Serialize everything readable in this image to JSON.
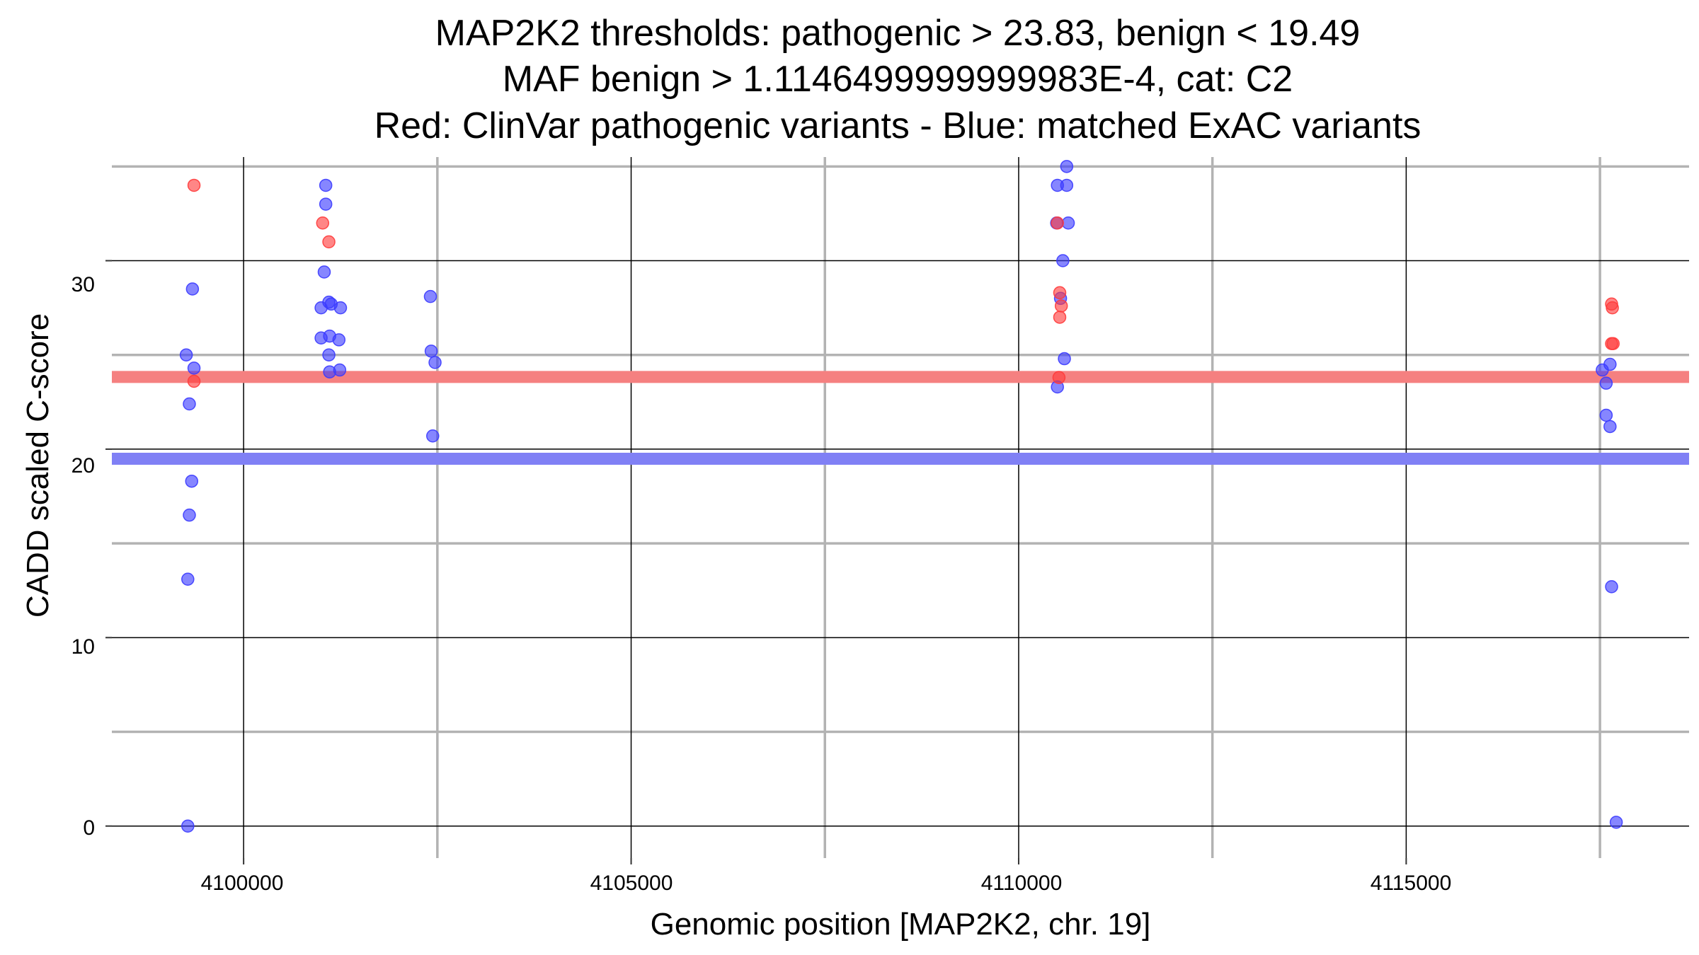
{
  "chart_data": {
    "type": "scatter",
    "title_lines": [
      "MAP2K2 thresholds: pathogenic > 23.83, benign < 19.49",
      "MAF benign > 1.1146499999999983E-4, cat: C2",
      "Red: ClinVar pathogenic variants - Blue: matched ExAC variants"
    ],
    "xlabel": "Genomic position [MAP2K2, chr. 19]",
    "ylabel": "CADD scaled C-score",
    "xlim": [
      4098300,
      4118650
    ],
    "ylim": [
      -1.7,
      35.5
    ],
    "x_major_ticks": [
      4100000,
      4105000,
      4110000,
      4115000
    ],
    "x_minor_ticks": [
      4102500,
      4107500,
      4112500,
      4117500
    ],
    "y_major_ticks": [
      0,
      10,
      20,
      30
    ],
    "y_minor_ticks": [
      5,
      15,
      25,
      35
    ],
    "x_tick_labels": [
      "4100000",
      "4105000",
      "4110000",
      "4115000"
    ],
    "y_tick_labels": [
      "0",
      "10",
      "20",
      "30"
    ],
    "colors": {
      "pathogenic": "#ff3b3b",
      "benign": "#3b3bff",
      "pathogenic_threshold_line": "#f58080",
      "benign_threshold_line": "#8080f5",
      "major_grid": "#000000",
      "minor_grid": "#b3b3b3"
    },
    "thresholds": {
      "pathogenic": 23.83,
      "benign": 19.49
    },
    "series": [
      {
        "name": "ClinVar pathogenic variants",
        "color_key": "pathogenic",
        "points": [
          [
            4099360,
            34.0
          ],
          [
            4099360,
            23.6
          ],
          [
            4101020,
            32.0
          ],
          [
            4101100,
            31.0
          ],
          [
            4110500,
            32.0
          ],
          [
            4110530,
            28.3
          ],
          [
            4110550,
            27.6
          ],
          [
            4110530,
            27.0
          ],
          [
            4110520,
            23.8
          ],
          [
            4117650,
            27.7
          ],
          [
            4117660,
            27.5
          ],
          [
            4117650,
            25.6
          ],
          [
            4117670,
            25.6
          ]
        ]
      },
      {
        "name": "matched ExAC variants",
        "color_key": "benign",
        "points": [
          [
            4099260,
            25.0
          ],
          [
            4099360,
            24.3
          ],
          [
            4099300,
            22.4
          ],
          [
            4099330,
            18.3
          ],
          [
            4099300,
            16.5
          ],
          [
            4099280,
            13.1
          ],
          [
            4099280,
            0.0
          ],
          [
            4099340,
            28.5
          ],
          [
            4101060,
            34.0
          ],
          [
            4101060,
            33.0
          ],
          [
            4101040,
            29.4
          ],
          [
            4101000,
            27.5
          ],
          [
            4101100,
            27.8
          ],
          [
            4101130,
            27.7
          ],
          [
            4101250,
            27.5
          ],
          [
            4101000,
            25.9
          ],
          [
            4101110,
            26.0
          ],
          [
            4101230,
            25.8
          ],
          [
            4101100,
            25.0
          ],
          [
            4101110,
            24.1
          ],
          [
            4101240,
            24.2
          ],
          [
            4102410,
            28.1
          ],
          [
            4102420,
            25.2
          ],
          [
            4102470,
            24.6
          ],
          [
            4102440,
            20.7
          ],
          [
            4110500,
            34.0
          ],
          [
            4110620,
            35.0
          ],
          [
            4110620,
            34.0
          ],
          [
            4110490,
            32.0
          ],
          [
            4110640,
            32.0
          ],
          [
            4110570,
            30.0
          ],
          [
            4110540,
            28.0
          ],
          [
            4110590,
            24.8
          ],
          [
            4110500,
            23.3
          ],
          [
            4117530,
            24.2
          ],
          [
            4117630,
            24.5
          ],
          [
            4117580,
            23.5
          ],
          [
            4117580,
            21.8
          ],
          [
            4117630,
            21.2
          ],
          [
            4117650,
            12.7
          ],
          [
            4117710,
            0.2
          ]
        ]
      }
    ]
  }
}
